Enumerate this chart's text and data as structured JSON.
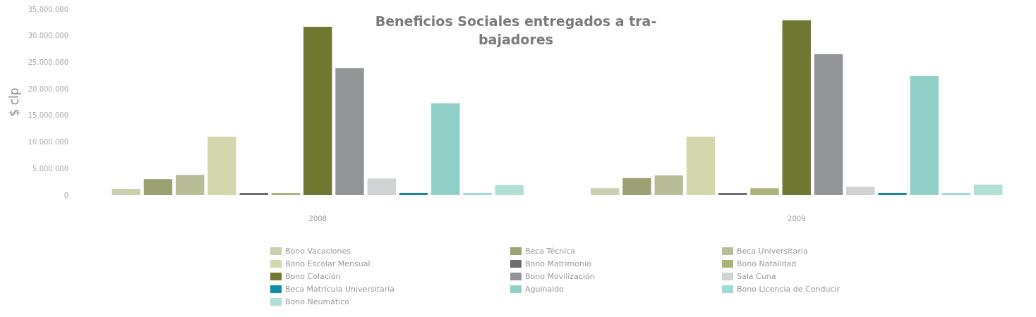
{
  "chart_data": {
    "type": "bar",
    "title": "Beneficios Sociales entregados a tra-\nbajadores",
    "ylabel": "$ clp",
    "categories": [
      "2008",
      "2009"
    ],
    "series": [
      {
        "name": "Bono Vacaciones",
        "color": "#cbcfb0",
        "values": [
          1200000,
          1300000
        ]
      },
      {
        "name": "Beca Técnica",
        "color": "#9ba173",
        "values": [
          3000000,
          3200000
        ]
      },
      {
        "name": "Beca Universitaria",
        "color": "#b8bd98",
        "values": [
          3800000,
          3700000
        ]
      },
      {
        "name": "Bono Escolar Mensual",
        "color": "#d4d7ab",
        "values": [
          11000000,
          11000000
        ]
      },
      {
        "name": "Bono Matrimonio",
        "color": "#6c6d70",
        "values": [
          400000,
          400000
        ]
      },
      {
        "name": "Bono Natalidad",
        "color": "#adb27a",
        "values": [
          400000,
          1300000
        ]
      },
      {
        "name": "Bono Colación",
        "color": "#707832",
        "values": [
          31700000,
          32900000
        ]
      },
      {
        "name": "Bono Movilización",
        "color": "#939498",
        "values": [
          23900000,
          26500000
        ]
      },
      {
        "name": "Sala Cuna",
        "color": "#d1d2d4",
        "values": [
          3100000,
          1600000
        ]
      },
      {
        "name": "Beca Matrícula Universitaria",
        "color": "#0e8ea6",
        "values": [
          400000,
          400000
        ]
      },
      {
        "name": "Aguinaldo",
        "color": "#8fd1c9",
        "values": [
          17300000,
          22400000
        ]
      },
      {
        "name": "Bono Licencia de Conducir",
        "color": "#9ddada",
        "values": [
          400000,
          400000
        ]
      },
      {
        "name": "Bono Neumático",
        "color": "#b1dfd5",
        "values": [
          1900000,
          2000000
        ]
      }
    ],
    "ylim": [
      0,
      35000000
    ],
    "yticks": [
      0,
      {
        "value": 5000000,
        "label": "5.000.000"
      },
      {
        "value": 10000000,
        "label": "10.000.000"
      },
      {
        "value": 15000000,
        "label": "15.000.000"
      },
      {
        "value": 20000000,
        "label": "20.000.000"
      },
      {
        "value": 25000000,
        "label": "25.000.000"
      },
      {
        "value": 30000000,
        "label": "30.000.000"
      },
      {
        "value": 35000000,
        "label": "35.000.000"
      }
    ],
    "grid": false,
    "legend": "bottom"
  }
}
